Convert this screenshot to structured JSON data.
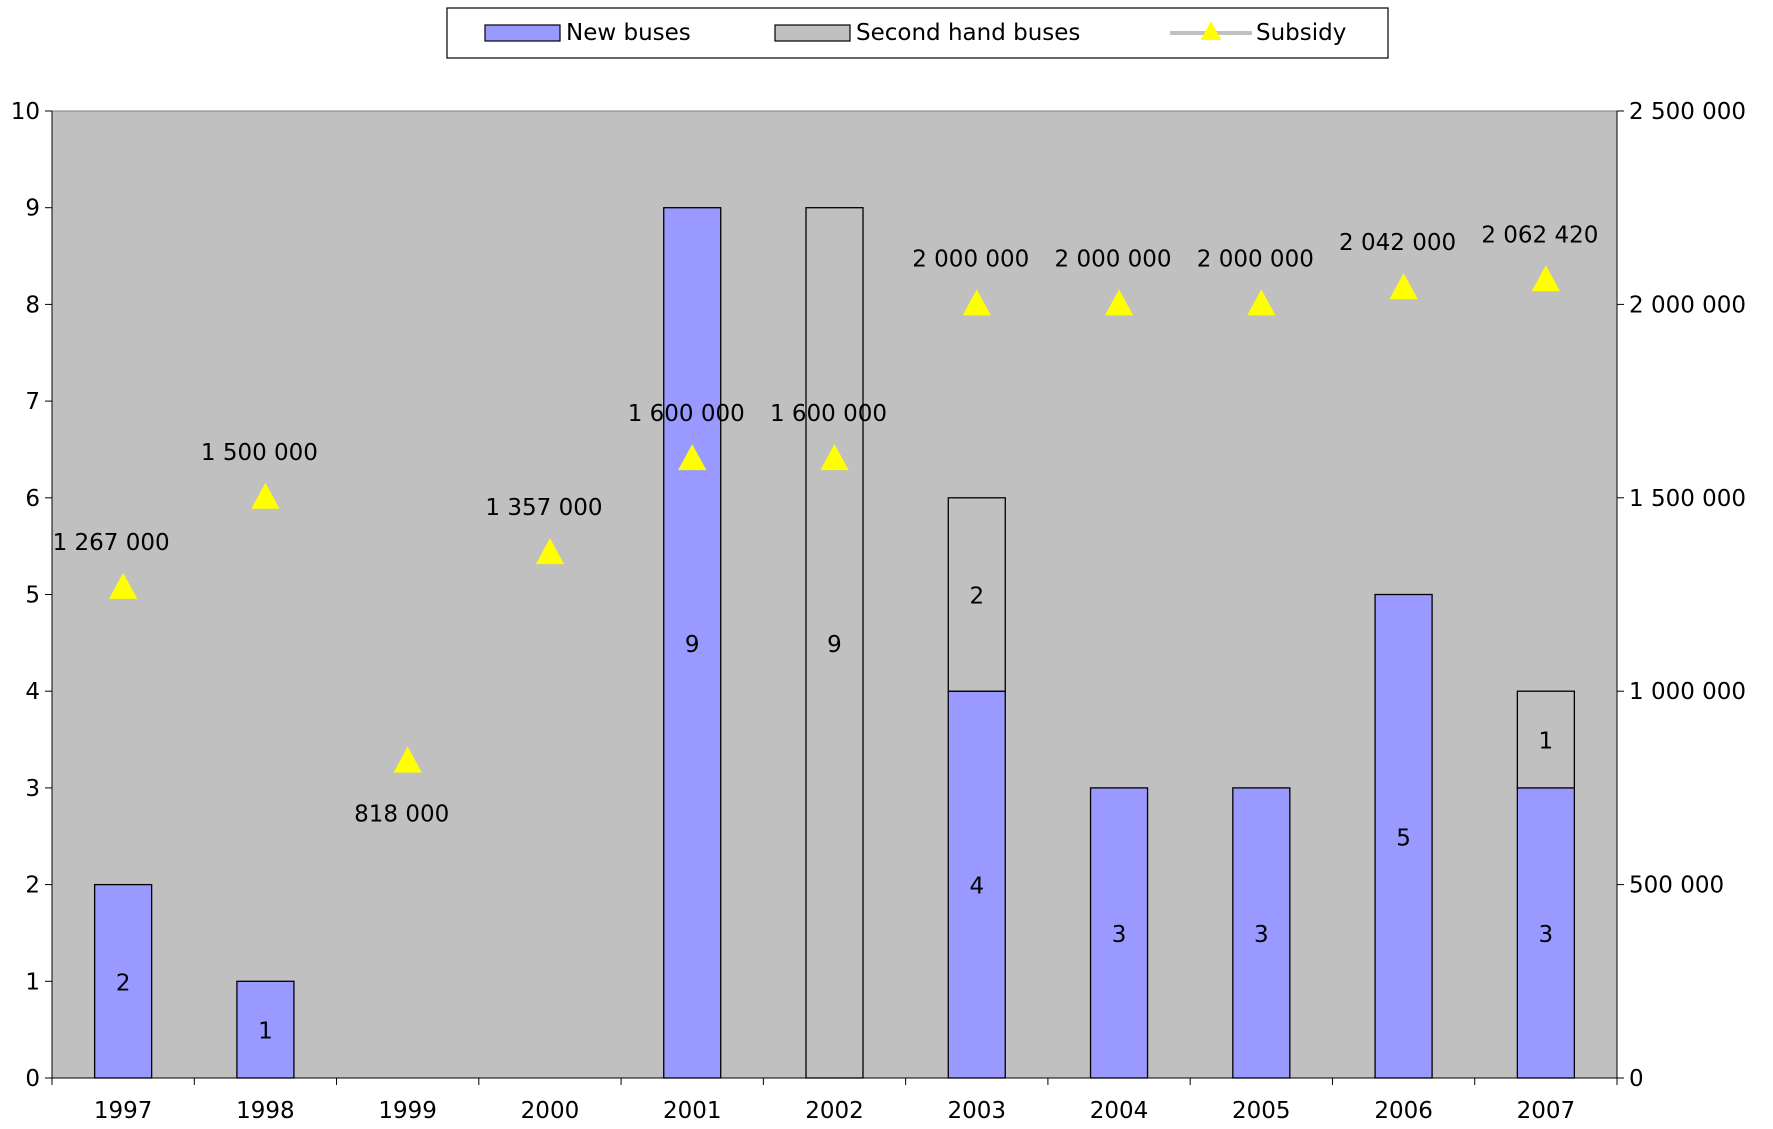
{
  "chart_data": {
    "type": "bar",
    "stacked": true,
    "categories": [
      "1997",
      "1998",
      "1999",
      "2000",
      "2001",
      "2002",
      "2003",
      "2004",
      "2005",
      "2006",
      "2007"
    ],
    "series": [
      {
        "name": "New buses",
        "type": "bar",
        "axis": "left",
        "values": [
          2,
          1,
          0,
          0,
          9,
          0,
          4,
          3,
          3,
          5,
          3
        ],
        "labels": [
          "2",
          "1",
          "",
          "",
          "9",
          "",
          "4",
          "3",
          "3",
          "5",
          "3"
        ]
      },
      {
        "name": "Second hand buses",
        "type": "bar",
        "axis": "left",
        "values": [
          0,
          0,
          0,
          0,
          0,
          9,
          2,
          0,
          0,
          0,
          1
        ],
        "labels": [
          "",
          "",
          "",
          "",
          "",
          "9",
          "2",
          "",
          "",
          "",
          "1"
        ]
      },
      {
        "name": "Subsidy",
        "type": "line-markers",
        "axis": "right",
        "values": [
          1267000,
          1500000,
          818000,
          1357000,
          1600000,
          1600000,
          2000000,
          2000000,
          2000000,
          2042000,
          2062420
        ],
        "labels": [
          "1 267 000",
          "1 500 000",
          "818 000",
          "1 357 000",
          "1 600 000",
          "1 600 000",
          "2 000 000",
          "2 000 000",
          "2 000 000",
          "2 042 000",
          "2 062 420"
        ]
      }
    ],
    "y_left": {
      "ylim": [
        0,
        10
      ],
      "ticks": [
        "0",
        "1",
        "2",
        "3",
        "4",
        "5",
        "6",
        "7",
        "8",
        "9",
        "10"
      ]
    },
    "y_right": {
      "ylim": [
        0,
        2500000
      ],
      "ticks": [
        "0",
        "500 000",
        "1 000 000",
        "1 500 000",
        "2 000 000",
        "2 500 000"
      ]
    },
    "legend": {
      "position": "top-center",
      "items": [
        "New buses",
        "Second hand buses",
        "Subsidy"
      ]
    },
    "colors": {
      "plot_bg": "#c0c0c0",
      "new": "#9999ff",
      "second": "#c0c0c0",
      "subsidy": "#ffff00",
      "subsidy_line": "#c0c0c0"
    },
    "grid": false
  }
}
